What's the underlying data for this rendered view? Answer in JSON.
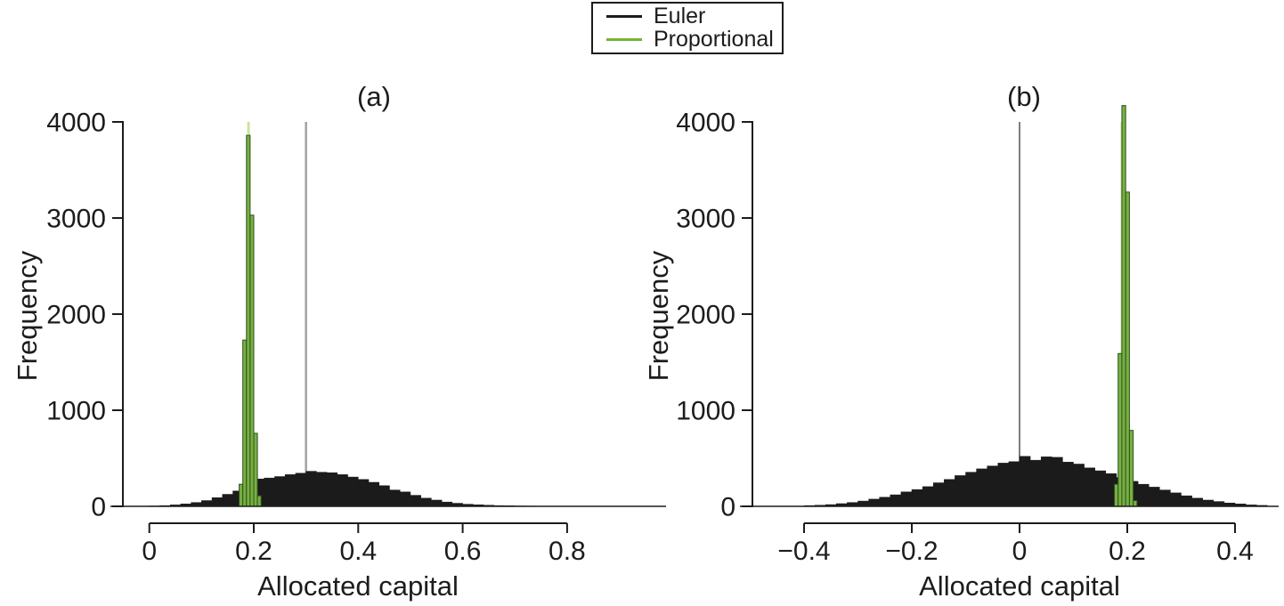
{
  "legend": {
    "items": [
      {
        "label": "Euler",
        "color": "#1c1c1c"
      },
      {
        "label": "Proportional",
        "color": "#76b434"
      }
    ]
  },
  "colors": {
    "euler_fill": "#1b1b1b",
    "prop_fill": "#78b043",
    "prop_edge": "#2e511b",
    "axis": "#1c1c1c",
    "euler_vline_a": "#a3a3a3",
    "euler_vline_b": "#545454",
    "prop_vline": "#cbe3a1",
    "background": "#ffffff"
  },
  "chart_data": [
    {
      "type": "bar",
      "panel_label": "(a)",
      "xlabel": "Allocated capital",
      "ylabel": "Frequency",
      "xlim": [
        0,
        0.8
      ],
      "ylim": [
        0,
        4000
      ],
      "grid": false,
      "legend_position": "top-center",
      "xticks": {
        "values": [
          0,
          0.2,
          0.4,
          0.6,
          0.8
        ],
        "labels": [
          "0",
          "0.2",
          "0.4",
          "0.6",
          "0.8"
        ]
      },
      "yticks": {
        "values": [
          0,
          1000,
          2000,
          3000,
          4000
        ],
        "labels": [
          "0",
          "1000",
          "2000",
          "3000",
          "4000"
        ]
      },
      "series": [
        {
          "name": "Euler",
          "type": "histogram",
          "bin_start": 0.0,
          "bin_width": 0.02,
          "counts": [
            4,
            8,
            15,
            25,
            40,
            60,
            90,
            125,
            160,
            250,
            285,
            295,
            310,
            330,
            345,
            365,
            355,
            350,
            330,
            305,
            280,
            250,
            215,
            170,
            150,
            115,
            85,
            65,
            45,
            32,
            22,
            16,
            12,
            8,
            6,
            4,
            3
          ]
        },
        {
          "name": "Proportional",
          "type": "histogram",
          "bin_start": 0.172,
          "bin_width": 0.007,
          "counts": [
            230,
            1730,
            3860,
            3030,
            760,
            110
          ]
        }
      ],
      "vlines": [
        {
          "series": "Euler",
          "x": 0.3,
          "color": "#a3a3a3"
        },
        {
          "series": "Proportional",
          "x": 0.19,
          "color": "#cbe3a1"
        }
      ]
    },
    {
      "type": "bar",
      "panel_label": "(b)",
      "xlabel": "Allocated capital",
      "ylabel": "Frequency",
      "xlim": [
        -0.4,
        0.4
      ],
      "ylim": [
        0,
        4000
      ],
      "grid": false,
      "legend_position": "top-center",
      "xticks": {
        "values": [
          -0.4,
          -0.2,
          0,
          0.2,
          0.4
        ],
        "labels": [
          "−0.4",
          "−0.2",
          "0",
          "0.2",
          "0.4"
        ]
      },
      "yticks": {
        "values": [
          0,
          1000,
          2000,
          3000,
          4000
        ],
        "labels": [
          "0",
          "1000",
          "2000",
          "3000",
          "4000"
        ]
      },
      "series": [
        {
          "name": "Euler",
          "type": "histogram",
          "bin_start": -0.4,
          "bin_width": 0.02,
          "counts": [
            8,
            12,
            18,
            28,
            40,
            55,
            75,
            95,
            120,
            150,
            175,
            205,
            245,
            280,
            320,
            355,
            390,
            420,
            450,
            465,
            520,
            480,
            515,
            510,
            460,
            440,
            400,
            370,
            340,
            300,
            260,
            230,
            200,
            170,
            140,
            110,
            85,
            65,
            50,
            35,
            25,
            15,
            10
          ]
        },
        {
          "name": "Proportional",
          "type": "histogram",
          "bin_start": 0.176,
          "bin_width": 0.007,
          "counts": [
            230,
            1590,
            4170,
            3270,
            790,
            60
          ]
        }
      ],
      "vlines": [
        {
          "series": "Euler",
          "x": 0,
          "color": "#545454"
        },
        {
          "series": "Proportional",
          "x": 0.19,
          "color": "#cbe3a1"
        }
      ]
    }
  ]
}
